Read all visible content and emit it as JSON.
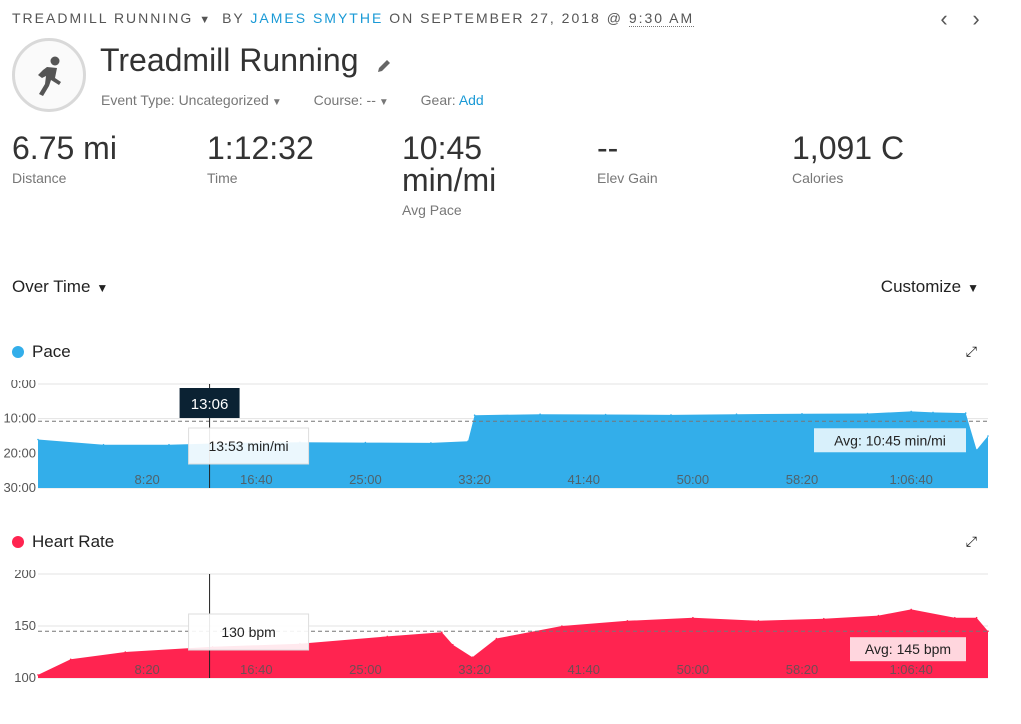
{
  "header": {
    "activity_type": "TREADMILL RUNNING",
    "by_label": "BY",
    "author": "JAMES SMYTHE",
    "on_label": "ON SEPTEMBER 27, 2018 @",
    "time": "9:30 AM",
    "prev_icon": "chevron-left-icon",
    "next_icon": "chevron-right-icon"
  },
  "activity": {
    "title": "Treadmill Running",
    "icon": "runner-icon",
    "event_type": "Event Type: Uncategorized",
    "course": "Course: --",
    "gear_label": "Gear:",
    "gear_add": "Add"
  },
  "stats": [
    {
      "value": "6.75 mi",
      "label": "Distance"
    },
    {
      "value": "1:12:32",
      "label": "Time"
    },
    {
      "value": "10:45",
      "value2": "min/mi",
      "label": "Avg Pace"
    },
    {
      "value": "--",
      "label": "Elev Gain"
    },
    {
      "value": "1,091 C",
      "label": "Calories"
    }
  ],
  "controls": {
    "over_time": "Over Time",
    "customize": "Customize"
  },
  "colors": {
    "pace": "#33aeea",
    "heart_rate": "#ff2450",
    "accent": "#1a9ad6"
  },
  "charts": {
    "pace": {
      "title": "Pace",
      "y_ticks": [
        "0:00",
        "10:00",
        "20:00",
        "30:00"
      ],
      "x_ticks": [
        "8:20",
        "16:40",
        "25:00",
        "33:20",
        "41:40",
        "50:00",
        "58:20",
        "1:06:40"
      ],
      "avg_label": "Avg: 10:45 min/mi",
      "tooltip_value": "13:53 min/mi",
      "cursor_time": "13:06"
    },
    "heart_rate": {
      "title": "Heart Rate",
      "y_ticks": [
        "200",
        "150",
        "100"
      ],
      "x_ticks": [
        "8:20",
        "16:40",
        "25:00",
        "33:20",
        "41:40",
        "50:00",
        "58:20",
        "1:06:40"
      ],
      "avg_label": "Avg: 145 bpm",
      "tooltip_value": "130 bpm"
    }
  },
  "chart_data": [
    {
      "type": "area",
      "title": "Pace",
      "ylabel": "min/mi",
      "y_inverted": true,
      "ylim": [
        0,
        30
      ],
      "xlim_seconds": [
        0,
        4352
      ],
      "x_ticks": [
        "8:20",
        "16:40",
        "25:00",
        "33:20",
        "41:40",
        "50:00",
        "58:20",
        "1:06:40"
      ],
      "y_ticks": [
        "0:00",
        "10:00",
        "20:00",
        "30:00"
      ],
      "x": [
        0,
        300,
        600,
        900,
        1200,
        1500,
        1800,
        1970,
        2000,
        2300,
        2600,
        2900,
        3200,
        3500,
        3800,
        4000,
        4100,
        4250,
        4300,
        4352
      ],
      "values": [
        16,
        17.5,
        17.5,
        17,
        16.8,
        16.9,
        17,
        16.5,
        9,
        8.7,
        8.8,
        8.9,
        8.7,
        8.6,
        8.5,
        7.9,
        8.2,
        8.4,
        19,
        15
      ],
      "average": 10.75,
      "average_label": "Avg: 10:45 min/mi",
      "cursor_time": "13:06",
      "cursor_value": "13:53 min/mi"
    },
    {
      "type": "area",
      "title": "Heart Rate",
      "ylabel": "bpm",
      "ylim": [
        100,
        200
      ],
      "xlim_seconds": [
        0,
        4352
      ],
      "x_ticks": [
        "8:20",
        "16:40",
        "25:00",
        "33:20",
        "41:40",
        "50:00",
        "58:20",
        "1:06:40"
      ],
      "y_ticks": [
        "200",
        "150",
        "100"
      ],
      "x": [
        0,
        150,
        400,
        800,
        1200,
        1600,
        1850,
        1900,
        1990,
        2100,
        2400,
        2700,
        3000,
        3300,
        3600,
        3850,
        4000,
        4200,
        4300,
        4352
      ],
      "values": [
        103,
        118,
        125,
        130,
        133,
        140,
        144,
        132,
        120,
        138,
        150,
        155,
        158,
        155,
        157,
        160,
        166,
        158,
        158,
        145
      ],
      "average": 145,
      "average_label": "Avg: 145 bpm",
      "cursor_time": "13:06",
      "cursor_value": "130 bpm"
    }
  ]
}
